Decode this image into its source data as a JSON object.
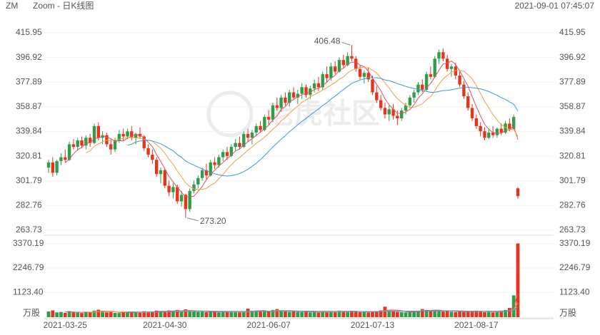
{
  "chart_data": {
    "type": "candlestick",
    "symbol": "ZM",
    "title": "Zoom - 日K线图",
    "timestamp": "2021-09-01 07:45:07",
    "watermark": "老虎社区",
    "categories": [
      null,
      null,
      null,
      null,
      "2021-03-25",
      null,
      null,
      null,
      null,
      null,
      null,
      null,
      null,
      null,
      null,
      null,
      null,
      null,
      null,
      null,
      null,
      null,
      null,
      null,
      null,
      null,
      null,
      null,
      "2021-04-30",
      null,
      null,
      null,
      null,
      null,
      null,
      null,
      null,
      null,
      null,
      null,
      null,
      null,
      null,
      null,
      null,
      null,
      null,
      null,
      null,
      null,
      null,
      null,
      null,
      "2021-06-07",
      null,
      null,
      null,
      null,
      null,
      null,
      null,
      null,
      null,
      null,
      null,
      null,
      null,
      null,
      null,
      null,
      null,
      null,
      null,
      null,
      null,
      null,
      null,
      null,
      "2021-07-13",
      null,
      null,
      null,
      null,
      null,
      null,
      null,
      null,
      null,
      null,
      null,
      null,
      null,
      null,
      null,
      null,
      null,
      null,
      null,
      null,
      null,
      null,
      null,
      null,
      "2021-08-17",
      null,
      null,
      null,
      null,
      null,
      null,
      null,
      null,
      null,
      null
    ],
    "candles": {
      "open": [
        312,
        316,
        308,
        317,
        320,
        318,
        330,
        328,
        333,
        329,
        335,
        331,
        344,
        335,
        337,
        330,
        326,
        333,
        338,
        336,
        340,
        335,
        338,
        336,
        327,
        322,
        318,
        307,
        310,
        298,
        293,
        297,
        286,
        291,
        280,
        294,
        299,
        304,
        310,
        306,
        316,
        314,
        320,
        324,
        321,
        328,
        331,
        328,
        338,
        335,
        339,
        344,
        341,
        351,
        349,
        360,
        358,
        366,
        362,
        370,
        366,
        369,
        374,
        368,
        373,
        377,
        374,
        384,
        381,
        390,
        386,
        395,
        391,
        398,
        396,
        388,
        382,
        385,
        380,
        370,
        364,
        358,
        353,
        357,
        352,
        350,
        356,
        360,
        366,
        370,
        376,
        372,
        384,
        382,
        396,
        401,
        396,
        388,
        390,
        383,
        376,
        367,
        358,
        350,
        344,
        340,
        335,
        339,
        337,
        342,
        339,
        346,
        342,
        296
      ],
      "high": [
        318,
        320,
        318,
        323,
        326,
        332,
        334,
        335,
        336,
        337,
        338,
        346,
        347,
        340,
        339,
        334,
        335,
        341,
        342,
        342,
        344,
        339,
        343,
        337,
        330,
        326,
        320,
        312,
        311,
        302,
        300,
        299,
        294,
        292,
        296,
        302,
        306,
        312,
        315,
        318,
        320,
        322,
        326,
        328,
        330,
        334,
        336,
        340,
        342,
        341,
        346,
        348,
        353,
        356,
        362,
        366,
        368,
        370,
        372,
        374,
        372,
        377,
        376,
        375,
        380,
        382,
        386,
        390,
        393,
        394,
        397,
        399,
        401,
        406.48,
        398,
        391,
        387,
        389,
        383,
        375,
        368,
        362,
        360,
        361,
        356,
        358,
        362,
        368,
        372,
        378,
        380,
        386,
        390,
        398,
        403,
        404,
        399,
        392,
        393,
        386,
        379,
        370,
        361,
        353,
        347,
        343,
        342,
        344,
        343,
        346,
        348,
        350,
        353,
        297
      ],
      "low": [
        308,
        305,
        306,
        314,
        316,
        317,
        326,
        325,
        327,
        326,
        328,
        330,
        333,
        330,
        328,
        322,
        324,
        331,
        333,
        334,
        333,
        330,
        334,
        325,
        320,
        315,
        305,
        300,
        296,
        290,
        288,
        284,
        282,
        273.2,
        278,
        292,
        296,
        302,
        303,
        305,
        311,
        312,
        317,
        318,
        320,
        325,
        326,
        327,
        332,
        330,
        336,
        339,
        340,
        345,
        347,
        356,
        355,
        360,
        359,
        364,
        361,
        365,
        366,
        365,
        370,
        371,
        372,
        378,
        379,
        384,
        385,
        389,
        390,
        394,
        386,
        380,
        377,
        378,
        368,
        362,
        356,
        350,
        348,
        349,
        345,
        348,
        353,
        358,
        362,
        368,
        370,
        371,
        380,
        381,
        392,
        394,
        386,
        382,
        380,
        374,
        365,
        356,
        348,
        342,
        336,
        333,
        334,
        335,
        335,
        337,
        338,
        340,
        341,
        288
      ],
      "close": [
        316,
        308,
        317,
        320,
        318,
        330,
        328,
        333,
        329,
        335,
        331,
        344,
        335,
        337,
        330,
        326,
        333,
        338,
        336,
        340,
        335,
        338,
        336,
        327,
        322,
        318,
        307,
        310,
        298,
        293,
        297,
        286,
        291,
        280,
        294,
        299,
        304,
        310,
        306,
        316,
        314,
        320,
        324,
        321,
        328,
        331,
        328,
        338,
        335,
        339,
        344,
        341,
        351,
        349,
        360,
        358,
        366,
        362,
        370,
        366,
        369,
        374,
        368,
        373,
        377,
        374,
        384,
        381,
        390,
        386,
        395,
        391,
        398,
        396,
        388,
        382,
        385,
        380,
        370,
        364,
        358,
        353,
        357,
        352,
        350,
        356,
        360,
        366,
        370,
        376,
        372,
        384,
        382,
        396,
        401,
        396,
        388,
        390,
        383,
        376,
        367,
        358,
        350,
        344,
        340,
        335,
        339,
        337,
        342,
        339,
        346,
        342,
        351,
        290
      ]
    },
    "volume": [
      260,
      310,
      220,
      240,
      200,
      280,
      230,
      210,
      190,
      250,
      230,
      300,
      340,
      260,
      220,
      240,
      200,
      190,
      230,
      210,
      250,
      220,
      200,
      270,
      240,
      260,
      300,
      280,
      250,
      310,
      290,
      330,
      280,
      360,
      300,
      260,
      240,
      250,
      230,
      260,
      240,
      220,
      250,
      230,
      260,
      240,
      220,
      250,
      390,
      280,
      300,
      260,
      280,
      250,
      330,
      370,
      310,
      260,
      240,
      280,
      250,
      230,
      260,
      220,
      240,
      210,
      250,
      240,
      280,
      260,
      300,
      270,
      250,
      290,
      260,
      230,
      240,
      220,
      260,
      280,
      310,
      480,
      300,
      260,
      240,
      230,
      220,
      250,
      270,
      290,
      370,
      330,
      280,
      340,
      300,
      260,
      280,
      250,
      230,
      270,
      240,
      260,
      280,
      300,
      250,
      230,
      240,
      220,
      260,
      300,
      330,
      420,
      1000,
      3370.19
    ],
    "max_label": "406.48",
    "min_label": "273.20",
    "up_color": "#2e9e48",
    "down_color": "#e8341c",
    "ma": [
      {
        "period": 5,
        "color": "#e05060"
      },
      {
        "period": 10,
        "color": "#f0a040"
      },
      {
        "period": 20,
        "color": "#3a9ad9"
      }
    ],
    "ylim": [
      263.73,
      415.95
    ],
    "yticks": [
      415.95,
      396.92,
      377.89,
      358.87,
      339.84,
      320.81,
      301.79,
      282.76,
      263.73
    ],
    "vol_ylim": [
      0,
      3650
    ],
    "vol_yticks": [
      3370.19,
      2246.79,
      {
        "value": 1123.4,
        "label": "1123.40"
      },
      {
        "value": 0,
        "label": "万股"
      }
    ],
    "grid": true
  }
}
